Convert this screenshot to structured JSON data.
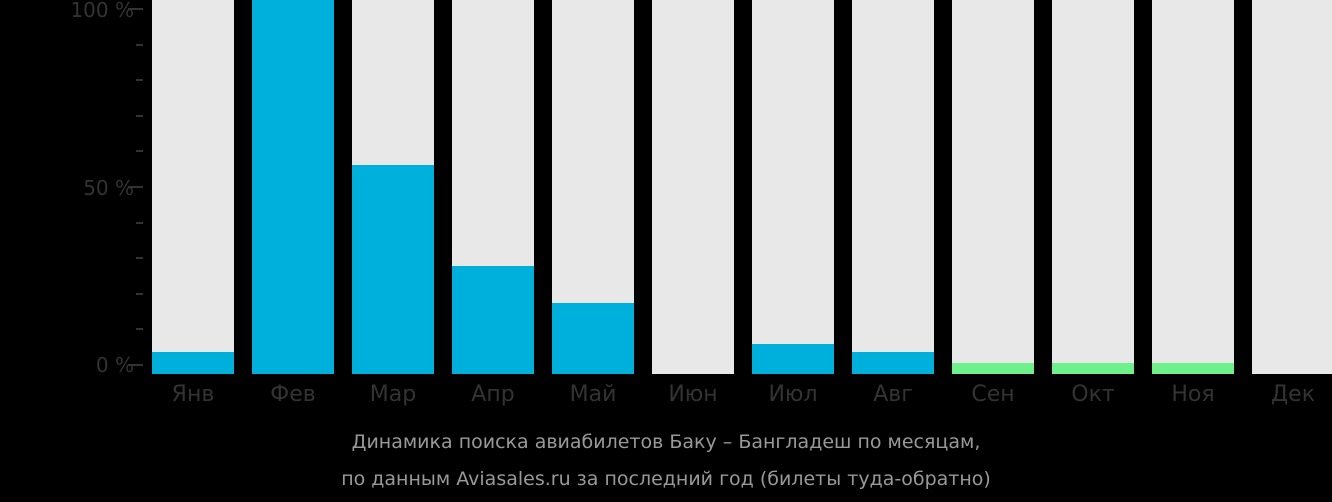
{
  "chart_data": {
    "type": "bar",
    "title": "Динамика поиска авиабилетов Баку – Бангладеш по месяцам, по данным Aviasales.ru за последний год (билеты туда-обратно)",
    "xlabel": "",
    "ylabel": "",
    "ylim": [
      0,
      100
    ],
    "y_ticks": [
      "0 %",
      "50 %",
      "100 %"
    ],
    "categories": [
      "Янв",
      "Фев",
      "Мар",
      "Апр",
      "Май",
      "Июн",
      "Июл",
      "Авг",
      "Сен",
      "Окт",
      "Ноя",
      "Дек"
    ],
    "values": [
      6,
      100,
      56,
      29,
      19,
      0,
      8,
      6,
      3,
      3,
      3,
      0
    ],
    "bar_colors": [
      "#00b0dc",
      "#00b0dc",
      "#00b0dc",
      "#00b0dc",
      "#00b0dc",
      "#00b0dc",
      "#00b0dc",
      "#00b0dc",
      "#6ef08a",
      "#6ef08a",
      "#6ef08a",
      "#6ef08a"
    ],
    "background_bar_color": "#e8e8e8",
    "grid": false,
    "legend": null
  },
  "caption": {
    "line1": "Динамика поиска авиабилетов Баку – Бангладеш по месяцам,",
    "line2": "по данным Aviasales.ru за последний год (билеты туда-обратно)"
  }
}
